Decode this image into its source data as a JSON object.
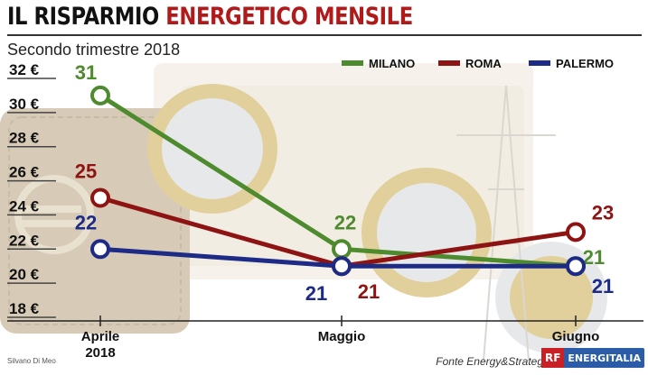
{
  "header": {
    "title_part1": "IL RISPARMIO ",
    "title_part2": "ENERGETICO MENSILE",
    "subtitle": "Secondo trimestre 2018"
  },
  "footer": {
    "credit": "Silvano Di Meo",
    "source": "Fonte Energy&Strategy",
    "logo_mark": "RF",
    "logo_text": "ENERGITALIA"
  },
  "colors": {
    "milano": "#4e8a2e",
    "roma": "#8e1414",
    "palermo": "#1d2a86",
    "title_accent": "#b01a1a"
  },
  "chart_data": {
    "type": "line",
    "title": "IL RISPARMIO ENERGETICO MENSILE",
    "subtitle": "Secondo trimestre 2018",
    "categories": [
      "Aprile 2018",
      "Maggio",
      "Giugno"
    ],
    "category_labels": [
      [
        "Aprile",
        "2018"
      ],
      [
        "Maggio"
      ],
      [
        "Giugno"
      ]
    ],
    "series": [
      {
        "name": "MILANO",
        "color": "#4e8a2e",
        "values": [
          31,
          22,
          21
        ]
      },
      {
        "name": "ROMA",
        "color": "#8e1414",
        "values": [
          25,
          21,
          23
        ]
      },
      {
        "name": "PALERMO",
        "color": "#1d2a86",
        "values": [
          22,
          21,
          21
        ]
      }
    ],
    "y_ticks": [
      "18 €",
      "20 €",
      "22 €",
      "24 €",
      "26 €",
      "28 €",
      "30 €",
      "32 €"
    ],
    "y_tick_values": [
      18,
      20,
      22,
      24,
      26,
      28,
      30,
      32
    ],
    "ylim": [
      18,
      32
    ],
    "legend_position": "top-right",
    "grid": false,
    "source": "Fonte Energy&Strategy"
  }
}
